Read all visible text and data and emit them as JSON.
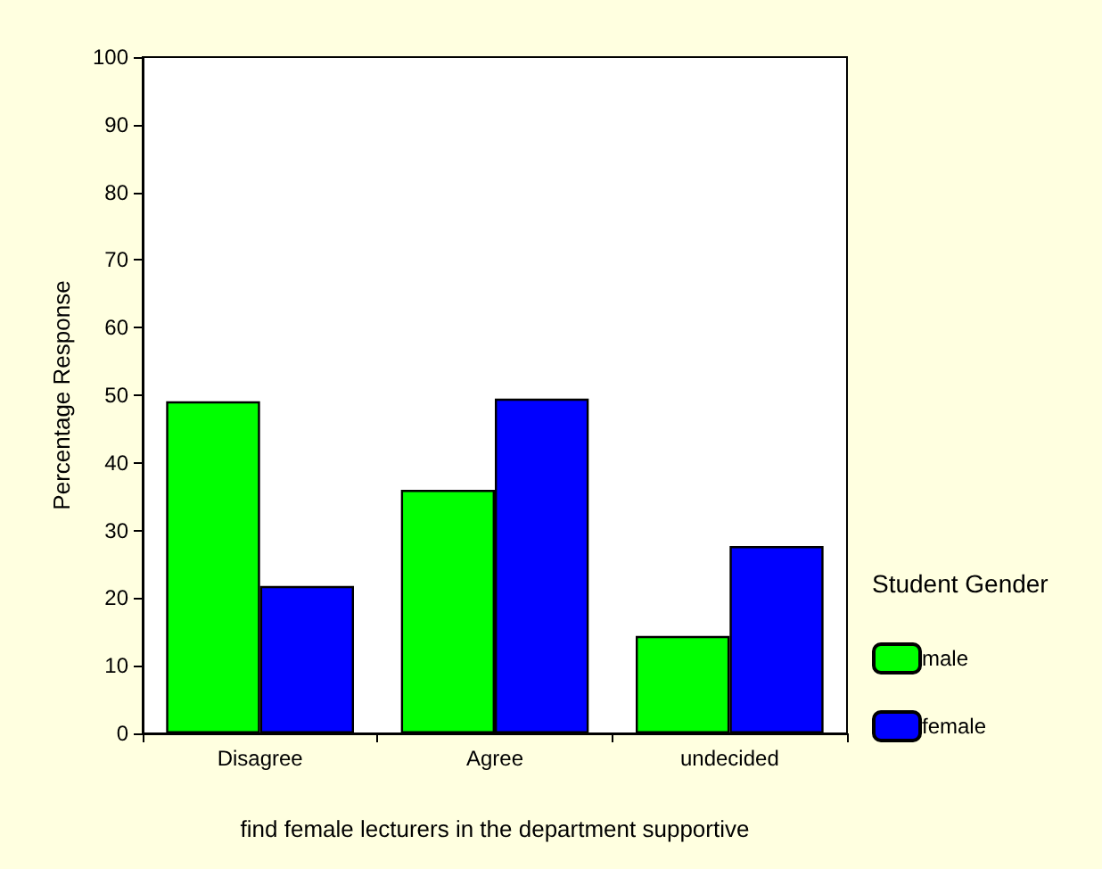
{
  "chart_data": {
    "type": "bar",
    "xlabel": "find female lecturers in the department supportive",
    "ylabel": "Percentage Response",
    "legend_title": "Student Gender",
    "categories": [
      "Disagree",
      "Agree",
      "undecided"
    ],
    "series": [
      {
        "name": "male",
        "color": "#00ff00",
        "values": [
          49.1,
          36.0,
          14.4
        ]
      },
      {
        "name": "female",
        "color": "#0000ff",
        "values": [
          21.8,
          49.5,
          27.7
        ]
      }
    ],
    "ylim": [
      0,
      100
    ],
    "yticks": [
      0,
      10,
      20,
      30,
      40,
      50,
      60,
      70,
      80,
      90,
      100
    ],
    "grid": false,
    "legend": "right"
  }
}
